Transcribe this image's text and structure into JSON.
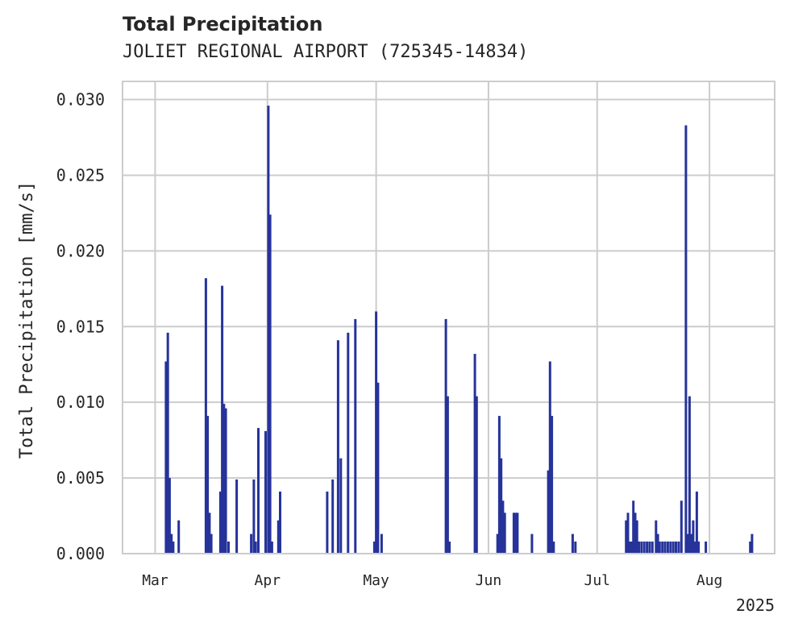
{
  "chart_data": {
    "type": "bar",
    "title": "Total Precipitation",
    "subtitle": "JOLIET REGIONAL AIRPORT (725345-14834)",
    "xlabel": "",
    "ylabel": "Total Precipitation [mm/s]",
    "x_range": [
      "2025-02-20",
      "2025-08-19"
    ],
    "ylim": [
      0,
      0.0312
    ],
    "y_ticks": [
      0.0,
      0.005,
      0.01,
      0.015,
      0.02,
      0.025,
      0.03
    ],
    "y_tick_labels": [
      "0.000",
      "0.005",
      "0.010",
      "0.015",
      "0.020",
      "0.025",
      "0.030"
    ],
    "x_ticks": [
      {
        "date": "2025-03-01",
        "label": "Mar"
      },
      {
        "date": "2025-04-01",
        "label": "Apr"
      },
      {
        "date": "2025-05-01",
        "label": "May"
      },
      {
        "date": "2025-06-01",
        "label": "Jun"
      },
      {
        "date": "2025-07-01",
        "label": "Jul"
      },
      {
        "date": "2025-08-01",
        "label": "Aug"
      }
    ],
    "x_offset_label": "2025",
    "grid": true,
    "bar_color": "#26339a",
    "series": [
      {
        "points": [
          [
            "2025-03-04T00:00",
            0.0127
          ],
          [
            "2025-03-04T12:00",
            0.0146
          ],
          [
            "2025-03-05T00:00",
            0.005
          ],
          [
            "2025-03-05T12:00",
            0.0013
          ],
          [
            "2025-03-06T00:00",
            0.0008
          ],
          [
            "2025-03-07T12:00",
            0.0022
          ],
          [
            "2025-03-15T00:00",
            0.0182
          ],
          [
            "2025-03-15T12:00",
            0.0091
          ],
          [
            "2025-03-16T00:00",
            0.0027
          ],
          [
            "2025-03-16T12:00",
            0.0013
          ],
          [
            "2025-03-19T00:00",
            0.0041
          ],
          [
            "2025-03-19T12:00",
            0.0177
          ],
          [
            "2025-03-20T00:00",
            0.0099
          ],
          [
            "2025-03-20T12:00",
            0.0096
          ],
          [
            "2025-03-21T06:00",
            0.0008
          ],
          [
            "2025-03-23T12:00",
            0.0049
          ],
          [
            "2025-03-27T12:00",
            0.0013
          ],
          [
            "2025-03-28T06:00",
            0.0049
          ],
          [
            "2025-03-28T18:00",
            0.0008
          ],
          [
            "2025-03-29T12:00",
            0.0083
          ],
          [
            "2025-03-31T12:00",
            0.0081
          ],
          [
            "2025-04-01T06:00",
            0.0296
          ],
          [
            "2025-04-01T18:00",
            0.0224
          ],
          [
            "2025-04-02T06:00",
            0.0008
          ],
          [
            "2025-04-04T00:00",
            0.0022
          ],
          [
            "2025-04-04T12:00",
            0.0041
          ],
          [
            "2025-04-17T12:00",
            0.0041
          ],
          [
            "2025-04-19T00:00",
            0.0049
          ],
          [
            "2025-04-20T12:00",
            0.0141
          ],
          [
            "2025-04-21T06:00",
            0.0063
          ],
          [
            "2025-04-23T06:00",
            0.0146
          ],
          [
            "2025-04-25T06:00",
            0.0155
          ],
          [
            "2025-04-30T12:00",
            0.0008
          ],
          [
            "2025-05-01T00:00",
            0.016
          ],
          [
            "2025-05-01T12:00",
            0.0113
          ],
          [
            "2025-05-02T12:00",
            0.0013
          ],
          [
            "2025-05-20T06:00",
            0.0155
          ],
          [
            "2025-05-20T18:00",
            0.0104
          ],
          [
            "2025-05-21T06:00",
            0.0008
          ],
          [
            "2025-05-28T06:00",
            0.0132
          ],
          [
            "2025-05-28T18:00",
            0.0104
          ],
          [
            "2025-06-03T12:00",
            0.0013
          ],
          [
            "2025-06-04T00:00",
            0.0091
          ],
          [
            "2025-06-04T12:00",
            0.0063
          ],
          [
            "2025-06-05T00:00",
            0.0035
          ],
          [
            "2025-06-05T12:00",
            0.0027
          ],
          [
            "2025-06-08T00:00",
            0.0027
          ],
          [
            "2025-06-08T12:00",
            0.0027
          ],
          [
            "2025-06-09T00:00",
            0.0027
          ],
          [
            "2025-06-13T00:00",
            0.0013
          ],
          [
            "2025-06-17T12:00",
            0.0055
          ],
          [
            "2025-06-18T00:00",
            0.0127
          ],
          [
            "2025-06-18T12:00",
            0.0091
          ],
          [
            "2025-06-19T00:00",
            0.0008
          ],
          [
            "2025-06-24T06:00",
            0.0013
          ],
          [
            "2025-06-25T00:00",
            0.0008
          ],
          [
            "2025-07-09T00:00",
            0.0022
          ],
          [
            "2025-07-09T12:00",
            0.0027
          ],
          [
            "2025-07-10T00:00",
            0.0008
          ],
          [
            "2025-07-10T12:00",
            0.0008
          ],
          [
            "2025-07-11T00:00",
            0.0035
          ],
          [
            "2025-07-11T12:00",
            0.0027
          ],
          [
            "2025-07-12T00:00",
            0.0022
          ],
          [
            "2025-07-12T12:00",
            0.0008
          ],
          [
            "2025-07-13T06:00",
            0.0008
          ],
          [
            "2025-07-14T00:00",
            0.0008
          ],
          [
            "2025-07-14T18:00",
            0.0008
          ],
          [
            "2025-07-15T12:00",
            0.0008
          ],
          [
            "2025-07-16T06:00",
            0.0008
          ],
          [
            "2025-07-17T06:00",
            0.0022
          ],
          [
            "2025-07-17T18:00",
            0.0013
          ],
          [
            "2025-07-18T06:00",
            0.0008
          ],
          [
            "2025-07-19T00:00",
            0.0008
          ],
          [
            "2025-07-19T18:00",
            0.0008
          ],
          [
            "2025-07-20T12:00",
            0.0008
          ],
          [
            "2025-07-21T06:00",
            0.0008
          ],
          [
            "2025-07-22T00:00",
            0.0008
          ],
          [
            "2025-07-22T18:00",
            0.0008
          ],
          [
            "2025-07-23T12:00",
            0.0008
          ],
          [
            "2025-07-24T06:00",
            0.0035
          ],
          [
            "2025-07-25T12:00",
            0.0283
          ],
          [
            "2025-07-26T00:00",
            0.0013
          ],
          [
            "2025-07-26T12:00",
            0.0104
          ],
          [
            "2025-07-27T00:00",
            0.0013
          ],
          [
            "2025-07-27T12:00",
            0.0022
          ],
          [
            "2025-07-28T00:00",
            0.0008
          ],
          [
            "2025-07-28T12:00",
            0.0041
          ],
          [
            "2025-07-29T00:00",
            0.0008
          ],
          [
            "2025-07-31T00:00",
            0.0008
          ],
          [
            "2025-08-12T06:00",
            0.0008
          ],
          [
            "2025-08-12T18:00",
            0.0013
          ]
        ]
      }
    ]
  }
}
